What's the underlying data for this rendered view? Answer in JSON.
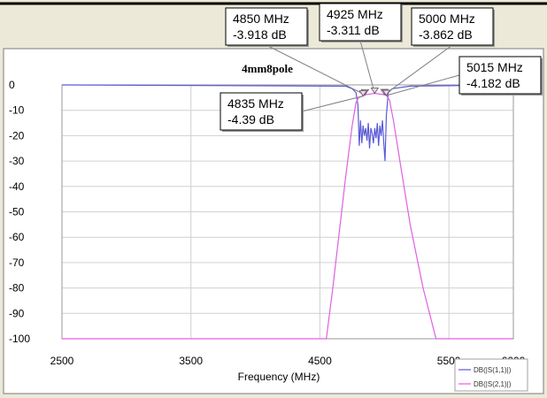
{
  "chart_data": {
    "type": "line",
    "title": "4mm8pole",
    "xlabel": "Frequency (MHz)",
    "ylabel": "",
    "xlim": [
      2500,
      6000
    ],
    "ylim": [
      -100,
      0
    ],
    "x_ticks": [
      2500,
      3500,
      4500,
      5500,
      6000
    ],
    "y_ticks": [
      0,
      -10,
      -20,
      -30,
      -40,
      -50,
      -60,
      -70,
      -80,
      -90,
      -100
    ],
    "grid": true,
    "legend_position": "bottom-right",
    "series": [
      {
        "name": "DB(|S(1,1)|)",
        "color": "#5a5ad8",
        "x": [
          2500,
          4700,
          4750,
          4780,
          4795,
          4805,
          4815,
          4825,
          4835,
          4845,
          4855,
          4865,
          4875,
          4885,
          4895,
          4905,
          4915,
          4925,
          4935,
          4945,
          4955,
          4965,
          4975,
          4985,
          4995,
          5005,
          5015,
          5030,
          5060,
          5200,
          6000
        ],
        "y": [
          0,
          -0.5,
          -1.5,
          -3,
          -8,
          -24,
          -14,
          -23,
          -16,
          -20,
          -17,
          -22,
          -15,
          -25,
          -17,
          -19,
          -23,
          -17,
          -21,
          -15,
          -24,
          -16,
          -20,
          -14,
          -23,
          -30,
          -12,
          -3,
          -1.5,
          -0.5,
          0
        ]
      },
      {
        "name": "DB(|S(2,1)|)",
        "color": "#e060e0",
        "x": [
          2500,
          4550,
          4600,
          4650,
          4700,
          4750,
          4780,
          4800,
          4835,
          4850,
          4925,
          5000,
          5015,
          5040,
          5070,
          5120,
          5200,
          5300,
          5400,
          6000
        ],
        "y": [
          -100,
          -100,
          -80,
          -58,
          -36,
          -16,
          -7,
          -5,
          -4.39,
          -3.918,
          -3.311,
          -3.862,
          -4.182,
          -6,
          -14,
          -30,
          -55,
          -80,
          -100,
          -100
        ]
      }
    ],
    "markers": [
      {
        "x": 4850,
        "y": -3.918,
        "freq": "4850 MHz",
        "db": "-3.918 dB"
      },
      {
        "x": 4925,
        "y": -3.311,
        "freq": "4925 MHz",
        "db": "-3.311 dB"
      },
      {
        "x": 5000,
        "y": -3.862,
        "freq": "5000 MHz",
        "db": "-3.862 dB"
      },
      {
        "x": 5015,
        "y": -4.182,
        "freq": "5015 MHz",
        "db": "-4.182 dB"
      },
      {
        "x": 4835,
        "y": -4.39,
        "freq": "4835 MHz",
        "db": "-4.39 dB"
      }
    ]
  }
}
